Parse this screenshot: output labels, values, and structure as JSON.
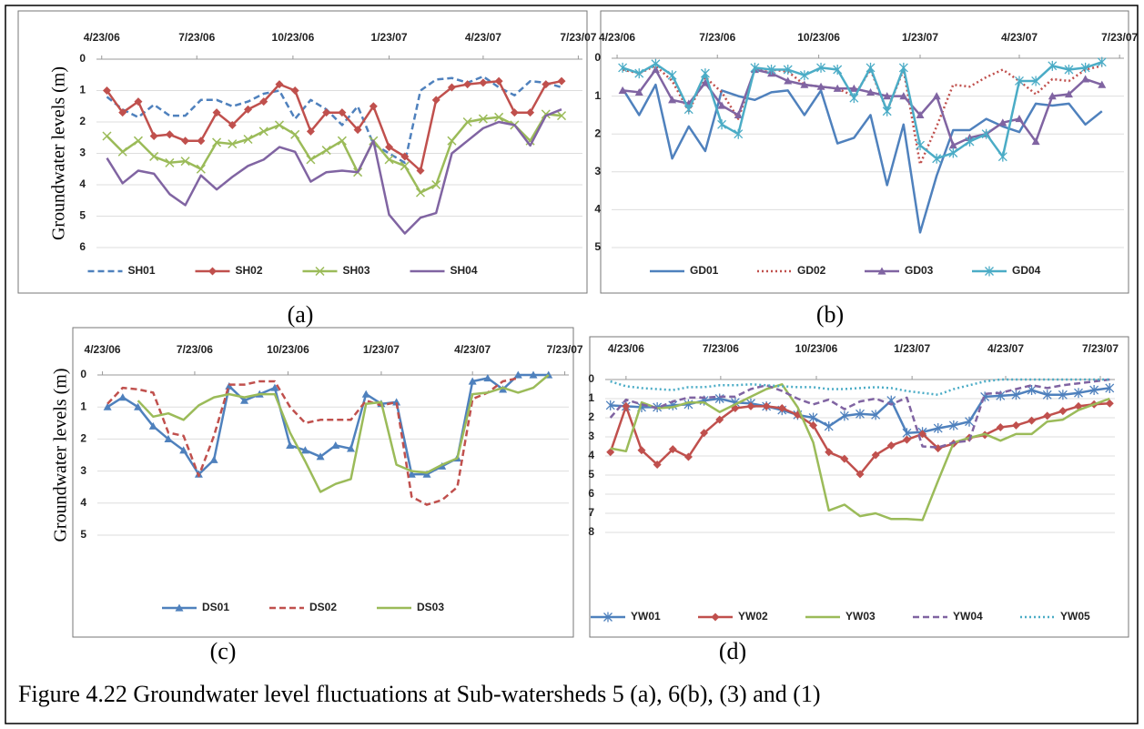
{
  "figure_caption": "Figure 4.22 Groundwater level fluctuations at Sub-watersheds 5 (a), 6(b), (3) and (1)",
  "chart_data": [
    {
      "type": "line",
      "label": "(a)",
      "ylabel": "Groundwater levels (m)",
      "y_inverted": true,
      "grid": true,
      "legend": "bottom",
      "xlim": [
        -5,
        460
      ],
      "xticks": [
        {
          "value": 0,
          "label": "4/23/06"
        },
        {
          "value": 91,
          "label": "7/23/06"
        },
        {
          "value": 183,
          "label": "10/23/06"
        },
        {
          "value": 275,
          "label": "1/23/07"
        },
        {
          "value": 365,
          "label": "4/23/07"
        },
        {
          "value": 456,
          "label": "7/23/07"
        }
      ],
      "ylim": [
        0,
        6
      ],
      "yticks": [
        0,
        1,
        2,
        3,
        4,
        5,
        6
      ],
      "x": [
        5,
        20,
        35,
        50,
        65,
        80,
        95,
        110,
        125,
        140,
        155,
        170,
        185,
        200,
        215,
        230,
        245,
        260,
        275,
        290,
        305,
        320,
        335,
        350,
        365,
        380,
        395,
        410,
        425,
        440
      ],
      "series": [
        {
          "name": "SH01",
          "color": "#4f81bd",
          "dash": "dashed",
          "marker": "none",
          "values": [
            1.2,
            1.6,
            1.85,
            1.45,
            1.8,
            1.8,
            1.3,
            1.3,
            1.5,
            1.35,
            1.1,
            1.0,
            1.9,
            1.3,
            1.6,
            2.1,
            1.5,
            2.7,
            3.0,
            3.3,
            1.0,
            0.65,
            0.6,
            0.75,
            0.55,
            0.9,
            1.15,
            0.7,
            0.75,
            0.9
          ]
        },
        {
          "name": "SH02",
          "color": "#c0504d",
          "dash": "solid",
          "marker": "diamond",
          "values": [
            1.0,
            1.7,
            1.35,
            2.45,
            2.4,
            2.6,
            2.6,
            1.7,
            2.1,
            1.6,
            1.35,
            0.8,
            1.0,
            2.3,
            1.7,
            1.7,
            2.25,
            1.5,
            2.8,
            3.1,
            3.55,
            1.3,
            0.9,
            0.8,
            0.75,
            0.7,
            1.7,
            1.7,
            0.8,
            0.7
          ]
        },
        {
          "name": "SH03",
          "color": "#9bbb59",
          "dash": "solid",
          "marker": "x",
          "values": [
            2.45,
            2.95,
            2.6,
            3.1,
            3.3,
            3.25,
            3.5,
            2.65,
            2.7,
            2.55,
            2.3,
            2.1,
            2.4,
            3.2,
            2.9,
            2.6,
            3.6,
            2.6,
            3.2,
            3.4,
            4.25,
            4.0,
            2.6,
            2.0,
            1.9,
            1.85,
            2.1,
            2.6,
            1.75,
            1.8
          ]
        },
        {
          "name": "SH04",
          "color": "#8064a2",
          "dash": "solid",
          "marker": "none",
          "values": [
            3.15,
            3.95,
            3.55,
            3.65,
            4.3,
            4.65,
            3.7,
            4.15,
            3.75,
            3.4,
            3.2,
            2.8,
            2.95,
            3.9,
            3.6,
            3.55,
            3.6,
            2.6,
            4.95,
            5.55,
            5.05,
            4.9,
            3.0,
            2.6,
            2.2,
            2.0,
            2.1,
            2.75,
            1.8,
            1.6
          ]
        }
      ]
    },
    {
      "type": "line",
      "label": "(b)",
      "y_inverted": true,
      "grid": true,
      "legend": "bottom",
      "xlim": [
        -5,
        460
      ],
      "xticks": [
        {
          "value": 0,
          "label": "4/23/06"
        },
        {
          "value": 91,
          "label": "7/23/06"
        },
        {
          "value": 183,
          "label": "10/23/06"
        },
        {
          "value": 275,
          "label": "1/23/07"
        },
        {
          "value": 365,
          "label": "4/23/07"
        },
        {
          "value": 456,
          "label": "7/23/07"
        }
      ],
      "ylim": [
        0,
        5
      ],
      "yticks": [
        0,
        1,
        2,
        3,
        4,
        5
      ],
      "x": [
        5,
        20,
        35,
        50,
        65,
        80,
        95,
        110,
        125,
        140,
        155,
        170,
        185,
        200,
        215,
        230,
        245,
        260,
        275,
        290,
        305,
        320,
        335,
        350,
        365,
        380,
        395,
        410,
        425,
        440
      ],
      "series": [
        {
          "name": "GD01",
          "color": "#4f81bd",
          "dash": "solid",
          "marker": "none",
          "values": [
            0.8,
            1.5,
            0.7,
            2.65,
            1.8,
            2.45,
            0.85,
            1.0,
            1.1,
            0.9,
            0.85,
            1.5,
            0.85,
            2.25,
            2.1,
            1.5,
            3.35,
            1.75,
            4.6,
            3.1,
            1.9,
            1.9,
            1.6,
            1.8,
            1.95,
            1.2,
            1.25,
            1.2,
            1.75,
            1.4
          ]
        },
        {
          "name": "GD02",
          "color": "#c0504d",
          "dash": "dotted",
          "marker": "none",
          "values": [
            0.3,
            0.4,
            0.2,
            0.6,
            1.4,
            0.5,
            0.9,
            1.6,
            0.3,
            0.3,
            0.35,
            0.7,
            0.75,
            0.8,
            1.0,
            0.3,
            1.4,
            0.3,
            2.8,
            1.8,
            0.7,
            0.75,
            0.5,
            0.3,
            0.6,
            0.95,
            0.55,
            0.6,
            0.3,
            0.2
          ]
        },
        {
          "name": "GD03",
          "color": "#8064a2",
          "dash": "solid",
          "marker": "triangle",
          "values": [
            0.85,
            0.9,
            0.3,
            1.1,
            1.2,
            0.65,
            1.25,
            1.5,
            0.3,
            0.4,
            0.6,
            0.7,
            0.75,
            0.8,
            0.8,
            0.9,
            1.0,
            1.0,
            1.5,
            1.0,
            2.3,
            2.1,
            2.0,
            1.7,
            1.6,
            2.2,
            1.0,
            0.95,
            0.55,
            0.7
          ]
        },
        {
          "name": "GD04",
          "color": "#4bacc6",
          "dash": "solid",
          "marker": "asterisk",
          "values": [
            0.25,
            0.4,
            0.15,
            0.45,
            1.35,
            0.4,
            1.75,
            2.0,
            0.25,
            0.3,
            0.3,
            0.45,
            0.25,
            0.3,
            1.05,
            0.25,
            1.4,
            0.25,
            2.3,
            2.65,
            2.5,
            2.2,
            2.0,
            2.6,
            0.6,
            0.6,
            0.2,
            0.3,
            0.25,
            0.1
          ]
        }
      ]
    },
    {
      "type": "line",
      "label": "(c)",
      "ylabel": "Groundwater levels (m)",
      "y_inverted": true,
      "grid": true,
      "legend": "bottom",
      "xlim": [
        -5,
        460
      ],
      "xticks": [
        {
          "value": 0,
          "label": "4/23/06"
        },
        {
          "value": 91,
          "label": "7/23/06"
        },
        {
          "value": 183,
          "label": "10/23/06"
        },
        {
          "value": 275,
          "label": "1/23/07"
        },
        {
          "value": 365,
          "label": "4/23/07"
        },
        {
          "value": 456,
          "label": "7/23/07"
        }
      ],
      "ylim": [
        0,
        5
      ],
      "yticks": [
        0,
        1,
        2,
        3,
        4,
        5
      ],
      "x": [
        5,
        20,
        35,
        50,
        65,
        80,
        95,
        110,
        125,
        140,
        155,
        170,
        185,
        200,
        215,
        230,
        245,
        260,
        275,
        290,
        305,
        320,
        335,
        350,
        365,
        380,
        395,
        410,
        425,
        440
      ],
      "series": [
        {
          "name": "DS01",
          "color": "#4f81bd",
          "dash": "solid",
          "marker": "triangle",
          "values": [
            1.0,
            0.7,
            1.0,
            1.6,
            2.0,
            2.35,
            3.1,
            2.65,
            0.35,
            0.8,
            0.6,
            0.4,
            2.2,
            2.35,
            2.55,
            2.2,
            2.3,
            0.6,
            0.9,
            0.85,
            3.1,
            3.1,
            2.85,
            2.6,
            0.2,
            0.1,
            0.45,
            0.0,
            0.0,
            0.0
          ]
        },
        {
          "name": "DS02",
          "color": "#c0504d",
          "dash": "dashed",
          "marker": "none",
          "values": [
            0.9,
            0.4,
            0.45,
            0.55,
            1.8,
            1.9,
            3.15,
            1.9,
            0.3,
            0.3,
            0.2,
            0.2,
            1.0,
            1.5,
            1.4,
            1.4,
            1.4,
            0.8,
            0.95,
            0.85,
            3.8,
            4.05,
            3.9,
            3.5,
            0.75,
            0.55,
            0.2,
            0.1,
            null,
            null
          ]
        },
        {
          "name": "DS03",
          "color": "#9bbb59",
          "dash": "solid",
          "marker": "none",
          "values": [
            null,
            null,
            0.8,
            1.3,
            1.2,
            1.4,
            0.95,
            0.7,
            0.6,
            0.7,
            0.6,
            0.6,
            1.8,
            2.7,
            3.65,
            3.4,
            3.25,
            0.9,
            0.85,
            2.8,
            3.0,
            3.05,
            2.8,
            2.6,
            0.6,
            0.55,
            0.4,
            0.55,
            0.4,
            0.0
          ]
        }
      ]
    },
    {
      "type": "line",
      "label": "(d)",
      "y_inverted": true,
      "grid": true,
      "legend": "bottom",
      "xlim": [
        -20,
        470
      ],
      "xticks": [
        {
          "value": 0,
          "label": "4/23/06"
        },
        {
          "value": 91,
          "label": "7/23/06"
        },
        {
          "value": 183,
          "label": "10/23/06"
        },
        {
          "value": 275,
          "label": "1/23/07"
        },
        {
          "value": 365,
          "label": "4/23/07"
        },
        {
          "value": 456,
          "label": "7/23/07"
        }
      ],
      "ylim": [
        0,
        8
      ],
      "yticks": [
        0,
        1,
        2,
        3,
        4,
        5,
        6,
        7,
        8
      ],
      "x": [
        -15,
        0,
        15,
        30,
        45,
        60,
        75,
        90,
        105,
        120,
        135,
        150,
        165,
        180,
        195,
        210,
        225,
        240,
        255,
        270,
        285,
        300,
        315,
        330,
        345,
        360,
        375,
        390,
        405,
        420,
        435,
        450,
        465
      ],
      "series": [
        {
          "name": "YW01",
          "color": "#4f81bd",
          "dash": "solid",
          "marker": "asterisk",
          "values": [
            1.35,
            1.4,
            1.45,
            1.45,
            1.35,
            1.3,
            1.1,
            1.0,
            1.2,
            1.25,
            1.4,
            1.6,
            1.85,
            2.0,
            2.45,
            1.9,
            1.8,
            1.85,
            1.1,
            2.8,
            2.75,
            2.55,
            2.4,
            2.2,
            0.9,
            0.85,
            0.8,
            0.55,
            0.8,
            0.8,
            0.7,
            0.55,
            0.45
          ]
        },
        {
          "name": "YW02",
          "color": "#c0504d",
          "dash": "solid",
          "marker": "diamond",
          "values": [
            3.8,
            1.4,
            3.7,
            4.45,
            3.65,
            4.05,
            2.8,
            2.1,
            1.5,
            1.4,
            1.4,
            1.5,
            1.85,
            2.4,
            3.8,
            4.15,
            4.95,
            3.95,
            3.45,
            3.15,
            2.85,
            3.6,
            3.35,
            3.05,
            2.9,
            2.5,
            2.4,
            2.15,
            1.9,
            1.65,
            1.4,
            1.3,
            1.25
          ]
        },
        {
          "name": "YW03",
          "color": "#9bbb59",
          "dash": "solid",
          "marker": "none",
          "values": [
            3.6,
            3.75,
            1.2,
            1.5,
            1.45,
            1.2,
            1.2,
            1.7,
            1.3,
            0.9,
            0.5,
            0.25,
            1.45,
            3.3,
            6.85,
            6.55,
            7.15,
            7.0,
            7.3,
            7.3,
            7.35,
            5.3,
            3.3,
            3.05,
            2.85,
            3.2,
            2.85,
            2.85,
            2.2,
            2.1,
            1.6,
            1.3,
            1.0
          ]
        },
        {
          "name": "YW04",
          "color": "#8064a2",
          "dash": "dashed",
          "marker": "none",
          "values": [
            2.0,
            1.05,
            1.3,
            1.5,
            1.15,
            0.95,
            0.95,
            0.9,
            0.9,
            0.5,
            0.3,
            0.6,
            1.0,
            1.3,
            1.05,
            1.55,
            1.15,
            1.0,
            1.3,
            0.95,
            3.5,
            3.55,
            3.3,
            3.2,
            0.75,
            0.7,
            0.5,
            0.3,
            0.45,
            0.3,
            0.2,
            0.1,
            0.0
          ]
        },
        {
          "name": "YW05",
          "color": "#4bacc6",
          "dash": "dotted",
          "marker": "none",
          "values": [
            0.1,
            0.35,
            0.45,
            0.5,
            0.55,
            0.4,
            0.4,
            0.3,
            0.3,
            0.25,
            0.3,
            0.35,
            0.4,
            0.4,
            0.5,
            0.5,
            0.45,
            0.4,
            0.45,
            0.6,
            0.7,
            0.8,
            0.5,
            0.3,
            0.1,
            0.0,
            0.0,
            0.0,
            0.0,
            0.0,
            0.0,
            0.0,
            0.0
          ]
        }
      ]
    }
  ]
}
